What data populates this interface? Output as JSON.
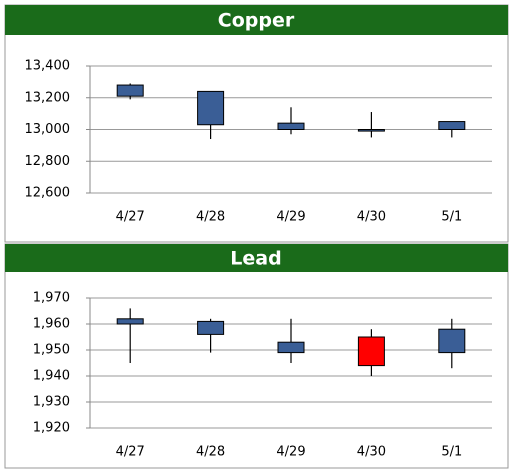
{
  "chart_data": [
    {
      "type": "candlestick",
      "title": "Copper",
      "categories": [
        "4/27",
        "4/28",
        "4/29",
        "4/30",
        "5/1"
      ],
      "open": [
        13210,
        13030,
        13000,
        12990,
        13000
      ],
      "high": [
        13290,
        13240,
        13140,
        13110,
        13050
      ],
      "low": [
        13190,
        12940,
        12970,
        12950,
        12950
      ],
      "close": [
        13280,
        13240,
        13040,
        13000,
        13050
      ],
      "up_color": "#3a5e96",
      "down_color": "#ff0000",
      "ylim": [
        12600,
        13400
      ],
      "yticks": [
        {
          "value": 12600,
          "label": "12,600"
        },
        {
          "value": 12800,
          "label": "12,800"
        },
        {
          "value": 13000,
          "label": "13,000"
        },
        {
          "value": 13200,
          "label": "13,200"
        },
        {
          "value": 13400,
          "label": "13,400"
        }
      ],
      "grid": true
    },
    {
      "type": "candlestick",
      "title": "Lead",
      "categories": [
        "4/27",
        "4/28",
        "4/29",
        "4/30",
        "5/1"
      ],
      "open": [
        1960,
        1956,
        1949,
        1955,
        1949
      ],
      "high": [
        1966,
        1962,
        1962,
        1958,
        1962
      ],
      "low": [
        1945,
        1949,
        1945,
        1940,
        1943
      ],
      "close": [
        1962,
        1961,
        1953,
        1944,
        1958
      ],
      "up_color": "#3a5e96",
      "down_color": "#ff0000",
      "ylim": [
        1920,
        1970
      ],
      "yticks": [
        {
          "value": 1920,
          "label": "1,920"
        },
        {
          "value": 1930,
          "label": "1,930"
        },
        {
          "value": 1940,
          "label": "1,940"
        },
        {
          "value": 1950,
          "label": "1,950"
        },
        {
          "value": 1960,
          "label": "1,960"
        },
        {
          "value": 1970,
          "label": "1,970"
        }
      ],
      "grid": true
    }
  ]
}
